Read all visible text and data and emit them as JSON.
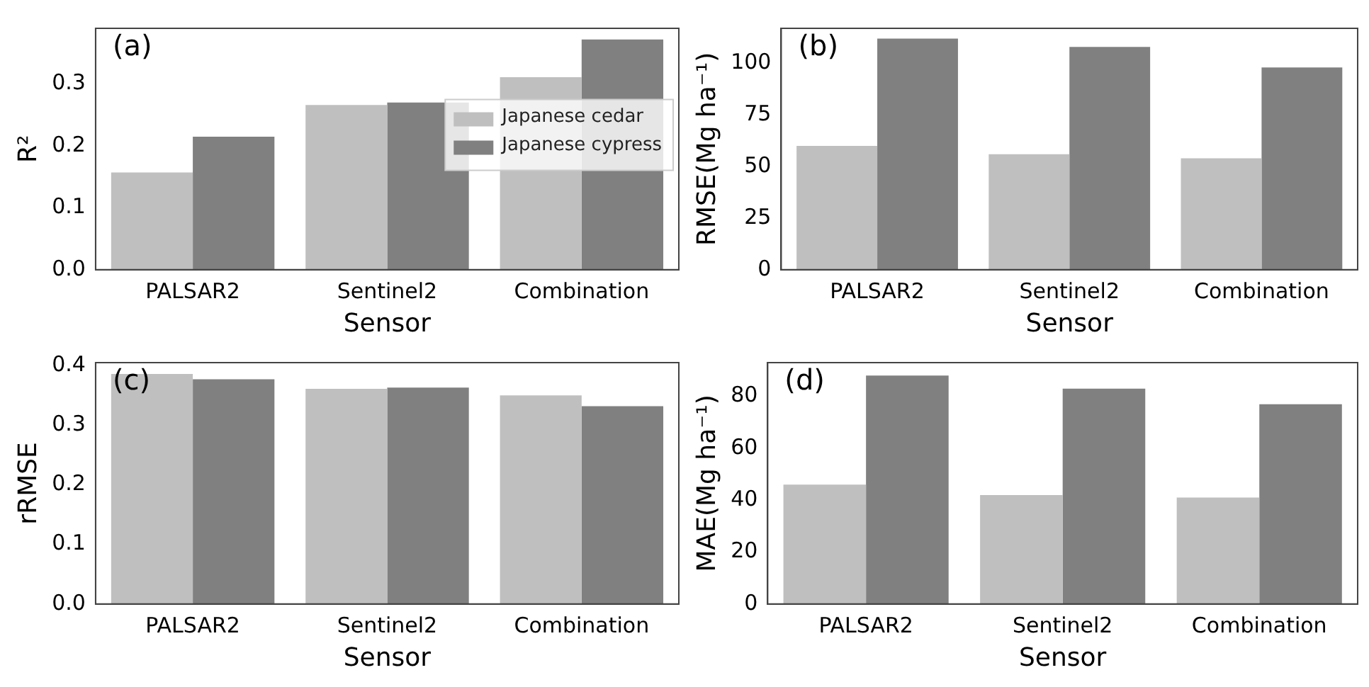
{
  "chart_data": [
    {
      "type": "bar",
      "categories": [
        "PALSAR2",
        "Sentinel2",
        "Combination"
      ],
      "xlabel": "Sensor",
      "ylabel": "R²",
      "annotations": [
        "(a)"
      ],
      "ylim": [
        0,
        0.39
      ],
      "yticks": [
        {
          "value": 0,
          "label": "0.0"
        },
        0.1,
        0.2,
        0.3
      ],
      "grid": false,
      "legend": "right",
      "series": [
        {
          "name": "Japanese cedar",
          "color": "#bfbfbf",
          "values": [
            0.157,
            0.266,
            0.311
          ]
        },
        {
          "name": "Japanese cypress",
          "color": "#808080",
          "values": [
            0.215,
            0.27,
            0.372
          ]
        }
      ]
    },
    {
      "type": "bar",
      "categories": [
        "PALSAR2",
        "Sentinel2",
        "Combination"
      ],
      "xlabel": "Sensor",
      "ylabel": "RMSE(Mg ha⁻¹)",
      "annotations": [
        "(b)"
      ],
      "ylim": [
        0,
        117
      ],
      "yticks": [
        0,
        25,
        50,
        75,
        100
      ],
      "grid": false,
      "series": [
        {
          "color": "#bfbfbf",
          "values": [
            60,
            56,
            54
          ]
        },
        {
          "color": "#808080",
          "values": [
            112,
            108,
            98
          ]
        }
      ]
    },
    {
      "type": "bar",
      "categories": [
        "PALSAR2",
        "Sentinel2",
        "Combination"
      ],
      "xlabel": "Sensor",
      "ylabel": "rRMSE",
      "annotations": [
        "(c)"
      ],
      "ylim": [
        0,
        0.405
      ],
      "yticks": [
        {
          "value": 0,
          "label": "0.0"
        },
        0.1,
        0.2,
        0.3,
        0.4
      ],
      "grid": false,
      "series": [
        {
          "color": "#bfbfbf",
          "values": [
            0.386,
            0.361,
            0.35
          ]
        },
        {
          "color": "#808080",
          "values": [
            0.377,
            0.363,
            0.332
          ]
        }
      ]
    },
    {
      "type": "bar",
      "categories": [
        "PALSAR2",
        "Sentinel2",
        "Combination"
      ],
      "xlabel": "Sensor",
      "ylabel": "MAE(Mg ha⁻¹)",
      "annotations": [
        "(d)"
      ],
      "ylim": [
        0,
        93
      ],
      "yticks": [
        0,
        20,
        40,
        60,
        80
      ],
      "grid": false,
      "series": [
        {
          "color": "#bfbfbf",
          "values": [
            46,
            42,
            41
          ]
        },
        {
          "color": "#808080",
          "values": [
            88,
            83,
            77
          ]
        }
      ]
    }
  ]
}
